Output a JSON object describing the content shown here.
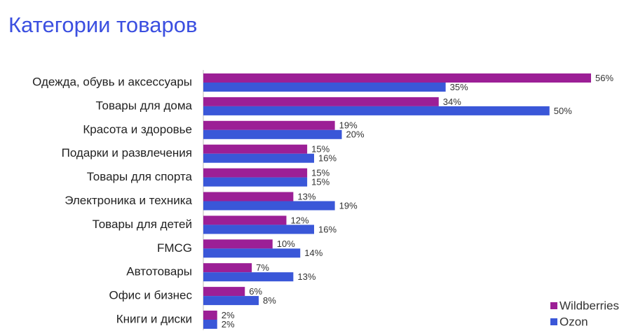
{
  "chart_data": {
    "type": "bar",
    "orientation": "horizontal",
    "title": "Категории товаров",
    "categories": [
      "Одежда, обувь и аксессуары",
      "Товары для дома",
      "Красота и здоровье",
      "Подарки и развлечения",
      "Товары для спорта",
      "Электроника и техника",
      "Товары для детей",
      "FMCG",
      "Автотовары",
      "Офис и бизнес",
      "Книги и диски"
    ],
    "series": [
      {
        "name": "Wildberries",
        "color": "#9c1f96",
        "values": [
          56,
          34,
          19,
          15,
          15,
          13,
          12,
          10,
          7,
          6,
          2
        ],
        "value_labels": [
          "56%",
          "34%",
          "19%",
          "15%",
          "15%",
          "13%",
          "12%",
          "10%",
          "7%",
          "6%",
          "2%"
        ]
      },
      {
        "name": "Ozon",
        "color": "#3a57d8",
        "values": [
          35,
          50,
          20,
          16,
          15,
          19,
          16,
          14,
          13,
          8,
          2
        ],
        "value_labels": [
          "35%",
          "50%",
          "20%",
          "16%",
          "15%",
          "19%",
          "16%",
          "14%",
          "13%",
          "8%",
          "2%"
        ]
      }
    ],
    "legend": "bottom-right"
  }
}
